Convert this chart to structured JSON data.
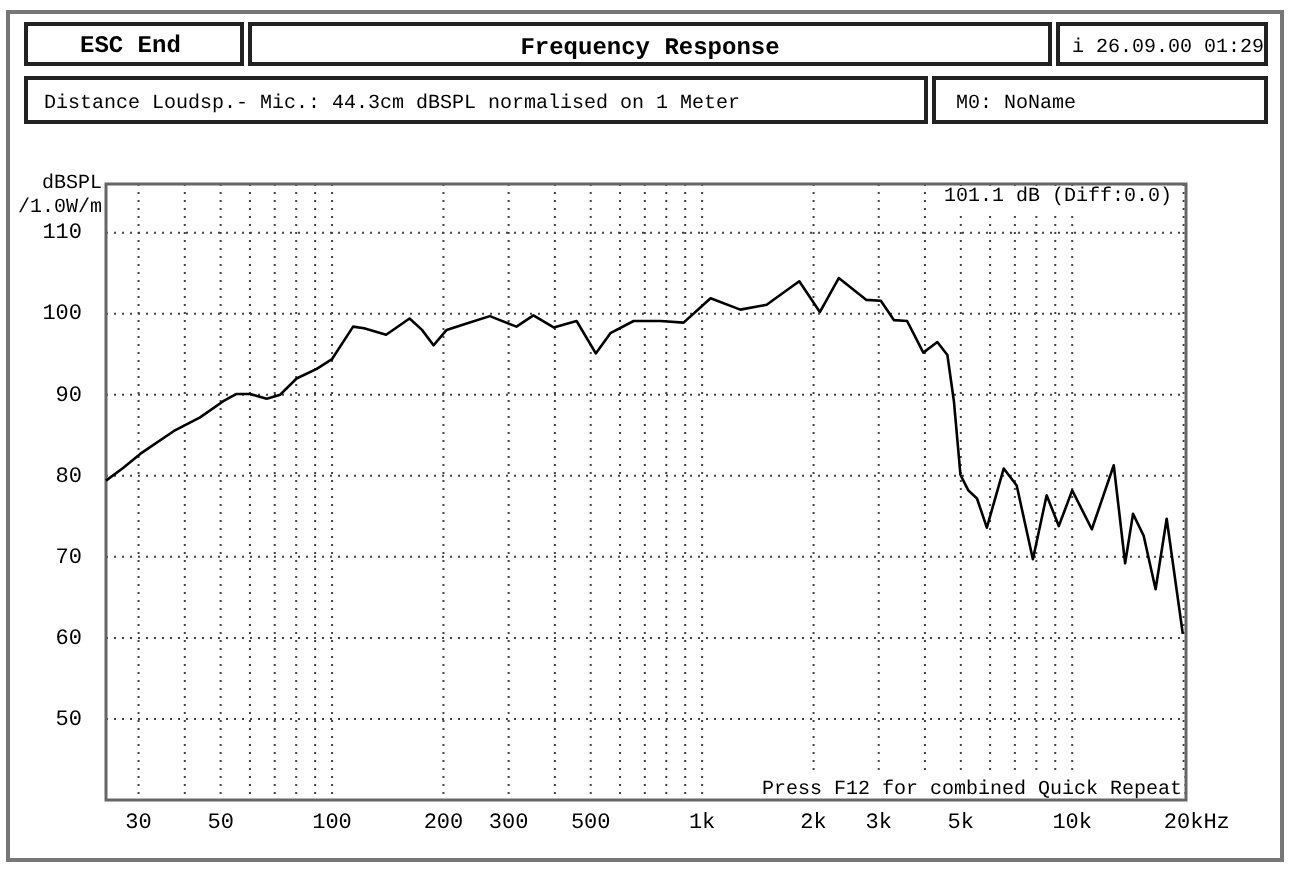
{
  "chart_data": {
    "type": "line",
    "title": "Frequency Response",
    "ylabel": "dBSPL /1.0W/m",
    "log": "x",
    "xlabel": "Hz",
    "grid": true,
    "marker": "none",
    "line_style": "solid",
    "annotations": [
      "ESC End",
      "i 26.09.00 01:29",
      "Distance Loudsp.- Mic.: 44.3cm dBSPL normalised on 1 Meter",
      "M0: NoName",
      "101.1 dB (Diff:0.0)",
      "Press F12 for combined Quick Repeat"
    ],
    "xlim": [
      24.5,
      20300
    ],
    "ylim": [
      40,
      116
    ],
    "xticks": [
      30,
      {
        "value": 40,
        "label": null
      },
      50,
      {
        "value": 60,
        "label": null
      },
      {
        "value": 70,
        "label": null
      },
      {
        "value": 80,
        "label": null
      },
      {
        "value": 90,
        "label": null
      },
      100,
      200,
      300,
      {
        "value": 400,
        "label": null
      },
      500,
      {
        "value": 600,
        "label": null
      },
      {
        "value": 700,
        "label": null
      },
      {
        "value": 800,
        "label": null
      },
      {
        "value": 900,
        "label": null
      },
      {
        "value": 1000,
        "label": "1k"
      },
      {
        "value": 2000,
        "label": "2k"
      },
      {
        "value": 3000,
        "label": "3k"
      },
      {
        "value": 4000,
        "label": null
      },
      {
        "value": 5000,
        "label": "5k"
      },
      {
        "value": 6000,
        "label": null
      },
      {
        "value": 7000,
        "label": null
      },
      {
        "value": 8000,
        "label": null
      },
      {
        "value": 9000,
        "label": null
      },
      {
        "value": 10000,
        "label": "10k"
      },
      {
        "value": 20000,
        "label": "20k"
      }
    ],
    "yticks": [
      50,
      60,
      70,
      80,
      90,
      100,
      110
    ],
    "series": [
      {
        "color": "#000000",
        "x": [
          24.5,
          27.3,
          30.3,
          37.3,
          44,
          50.8,
          55.2,
          60,
          66.6,
          72.4,
          80.2,
          90.9,
          100,
          114,
          122,
          140,
          162,
          175,
          188,
          204,
          231,
          267,
          315,
          350,
          397,
          458,
          516,
          565,
          653,
          770,
          891,
          1054,
          1268,
          1494,
          1830,
          2080,
          2340,
          2780,
          3040,
          3300,
          3580,
          3960,
          4320,
          4600,
          4790,
          4990,
          5240,
          5530,
          5880,
          6530,
          7080,
          7830,
          8530,
          9200,
          10000,
          11300,
          12950,
          13900,
          14600,
          15600,
          16800,
          18000,
          19900
        ],
        "values": [
          79.4,
          81,
          82.7,
          85.5,
          87.2,
          89.2,
          90.1,
          90.1,
          89.5,
          90,
          92,
          93.2,
          94.4,
          98.4,
          98.2,
          97.4,
          99.4,
          98,
          96.1,
          98,
          98.8,
          99.7,
          98.4,
          99.8,
          98.3,
          99.1,
          95.1,
          97.6,
          99.1,
          99.1,
          98.9,
          101.9,
          100.5,
          101.1,
          104,
          100.2,
          104.4,
          101.7,
          101.6,
          99.2,
          99.1,
          95.2,
          96.5,
          94.9,
          89.2,
          80.1,
          78.2,
          77.2,
          73.6,
          80.9,
          78.8,
          69.7,
          77.6,
          73.8,
          78.2,
          73.4,
          81.3,
          69.2,
          75.3,
          72.6,
          66,
          74.7,
          60.5
        ]
      }
    ]
  }
}
